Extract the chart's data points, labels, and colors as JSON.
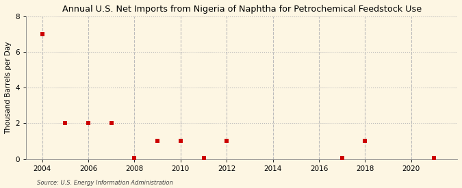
{
  "title": "Annual U.S. Net Imports from Nigeria of Naphtha for Petrochemical Feedstock Use",
  "ylabel": "Thousand Barrels per Day",
  "source": "Source: U.S. Energy Information Administration",
  "background_color": "#fdf6e3",
  "plot_bg_color": "#fdf6e3",
  "data_points": {
    "2004": 6.98,
    "2005": 2.0,
    "2006": 2.0,
    "2007": 2.0,
    "2008": 0.05,
    "2009": 1.0,
    "2010": 1.0,
    "2011": 0.05,
    "2012": 1.0,
    "2017": 0.05,
    "2018": 1.0,
    "2021": 0.05
  },
  "xlim": [
    2003.3,
    2022
  ],
  "ylim": [
    0,
    8
  ],
  "yticks": [
    0,
    2,
    4,
    6,
    8
  ],
  "xticks": [
    2004,
    2006,
    2008,
    2010,
    2012,
    2014,
    2016,
    2018,
    2020
  ],
  "marker_color": "#cc0000",
  "marker_size": 4,
  "grid_color": "#bbbbbb",
  "hgrid_linestyle": ":",
  "vgrid_linestyle": "--",
  "title_fontsize": 9.2,
  "ylabel_fontsize": 7.5,
  "tick_fontsize": 7.5
}
